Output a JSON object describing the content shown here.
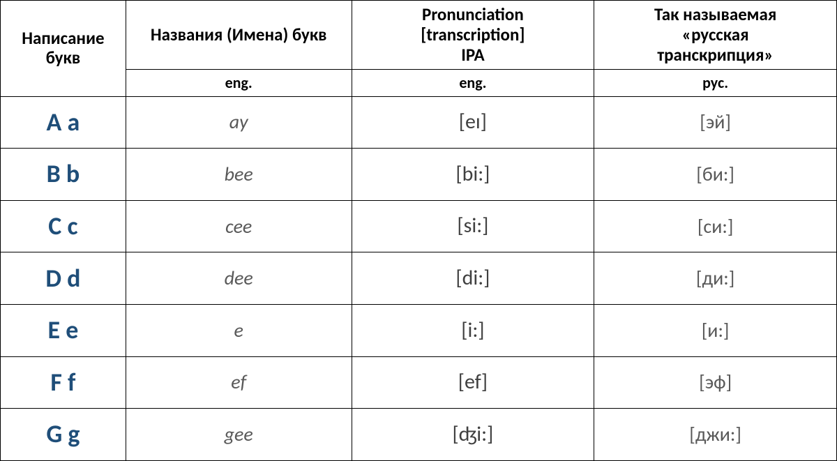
{
  "headers": {
    "col1": "Написание букв",
    "col2": "Названия (Имена) букв",
    "col3_line1": "Pronunciation",
    "col3_line2": "[transcription]",
    "col3_line3": "IPA",
    "col4_line1": "Так называемая",
    "col4_line2": "«русская",
    "col4_line3": "транскрипция»",
    "sub2": "eng.",
    "sub3": "eng.",
    "sub4": "рус."
  },
  "rows": [
    {
      "letter": "A a",
      "name": "ay",
      "ipa": "[eɪ]",
      "rus": "[эй]"
    },
    {
      "letter": "B b",
      "name": "bee",
      "ipa": "[bi:]",
      "rus": "[би:]"
    },
    {
      "letter": "C c",
      "name": "cee",
      "ipa": "[si:]",
      "rus": "[си:]"
    },
    {
      "letter": "D d",
      "name": "dee",
      "ipa": "[di:]",
      "rus": "[ди:]"
    },
    {
      "letter": "E e",
      "name": "e",
      "ipa": "[i:]",
      "rus": "[и:]"
    },
    {
      "letter": "F f",
      "name": "ef",
      "ipa": "[ef]",
      "rus": "[эф]"
    },
    {
      "letter": "G g",
      "name": "gee",
      "ipa": "[ʤi:]",
      "rus": "[джи:]"
    }
  ],
  "style": {
    "letter_color": "#1f4e79",
    "name_color": "#595959",
    "ipa_color": "#404040",
    "rus_color": "#595959",
    "border_color": "#000000",
    "background": "#ffffff",
    "header_fontsize": 25,
    "subheader_fontsize": 22,
    "letter_fontsize": 36,
    "name_fontsize": 28,
    "ipa_fontsize": 30,
    "rus_fontsize": 28,
    "col_widths_pct": [
      15,
      27,
      29,
      29
    ]
  }
}
